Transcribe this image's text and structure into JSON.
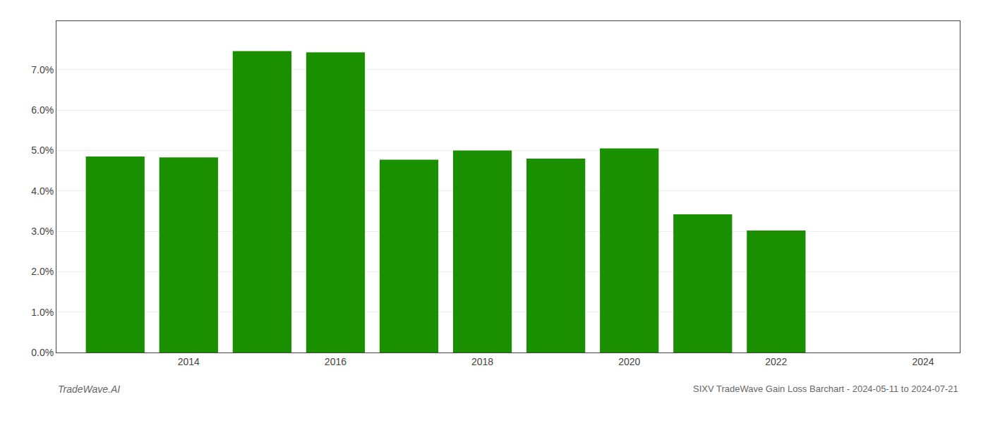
{
  "chart_data": {
    "type": "bar",
    "x": [
      2013,
      2014,
      2015,
      2016,
      2017,
      2018,
      2019,
      2020,
      2021,
      2022
    ],
    "values": [
      0.0485,
      0.0483,
      0.0746,
      0.0743,
      0.0477,
      0.05,
      0.048,
      0.0505,
      0.0342,
      0.0302
    ],
    "color": "#1a9000",
    "xlim": [
      2012.2,
      2024.5
    ],
    "xticks": [
      2014,
      2016,
      2018,
      2020,
      2022,
      2024
    ],
    "ylim": [
      0.0,
      0.082
    ],
    "yticks": [
      {
        "value": 0.0,
        "label": "0.0%"
      },
      {
        "value": 0.01,
        "label": "1.0%"
      },
      {
        "value": 0.02,
        "label": "2.0%"
      },
      {
        "value": 0.03,
        "label": "3.0%"
      },
      {
        "value": 0.04,
        "label": "4.0%"
      },
      {
        "value": 0.05,
        "label": "5.0%"
      },
      {
        "value": 0.06,
        "label": "6.0%"
      },
      {
        "value": 0.07,
        "label": "7.0%"
      }
    ],
    "grid": true,
    "annotations": [
      "TradeWave.AI",
      "SIXV TradeWave Gain Loss Barchart - 2024-05-11 to 2024-07-21"
    ]
  }
}
